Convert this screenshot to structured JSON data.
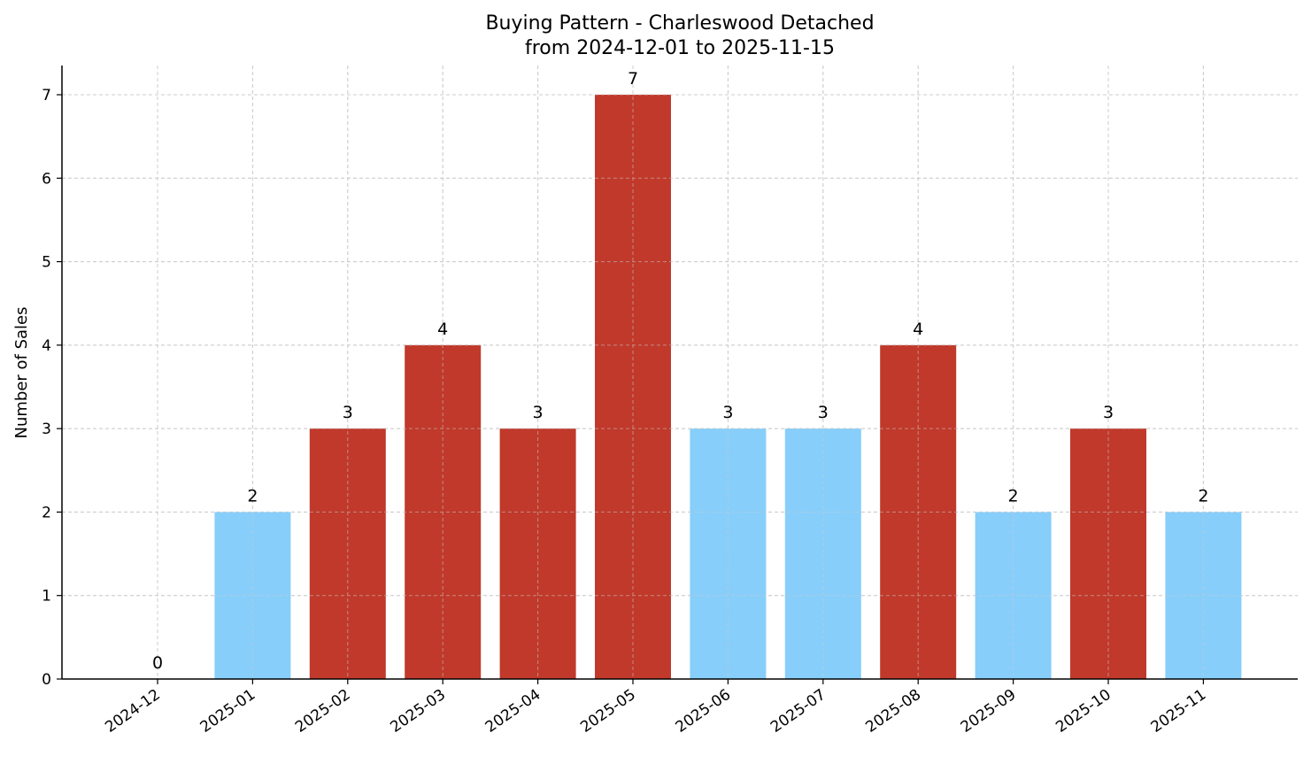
{
  "chart_data": {
    "type": "bar",
    "title": "Buying Pattern - Charleswood Detached",
    "subtitle": "from 2024-12-01 to 2025-11-15",
    "xlabel": "",
    "ylabel": "Number of Sales",
    "categories": [
      "2024-12",
      "2025-01",
      "2025-02",
      "2025-03",
      "2025-04",
      "2025-05",
      "2025-06",
      "2025-07",
      "2025-08",
      "2025-09",
      "2025-10",
      "2025-11"
    ],
    "values": [
      0,
      2,
      3,
      4,
      3,
      7,
      3,
      3,
      4,
      2,
      3,
      2
    ],
    "bar_colors": [
      "#c0392b",
      "#87cefa",
      "#c0392b",
      "#c0392b",
      "#c0392b",
      "#c0392b",
      "#87cefa",
      "#87cefa",
      "#c0392b",
      "#87cefa",
      "#c0392b",
      "#87cefa"
    ],
    "data_labels": [
      "0",
      "2",
      "3",
      "4",
      "3",
      "7",
      "3",
      "3",
      "4",
      "2",
      "3",
      "2"
    ],
    "yticks": [
      0,
      1,
      2,
      3,
      4,
      5,
      6,
      7
    ],
    "ylim": [
      0,
      7.35
    ],
    "grid": true,
    "legend": "none"
  }
}
